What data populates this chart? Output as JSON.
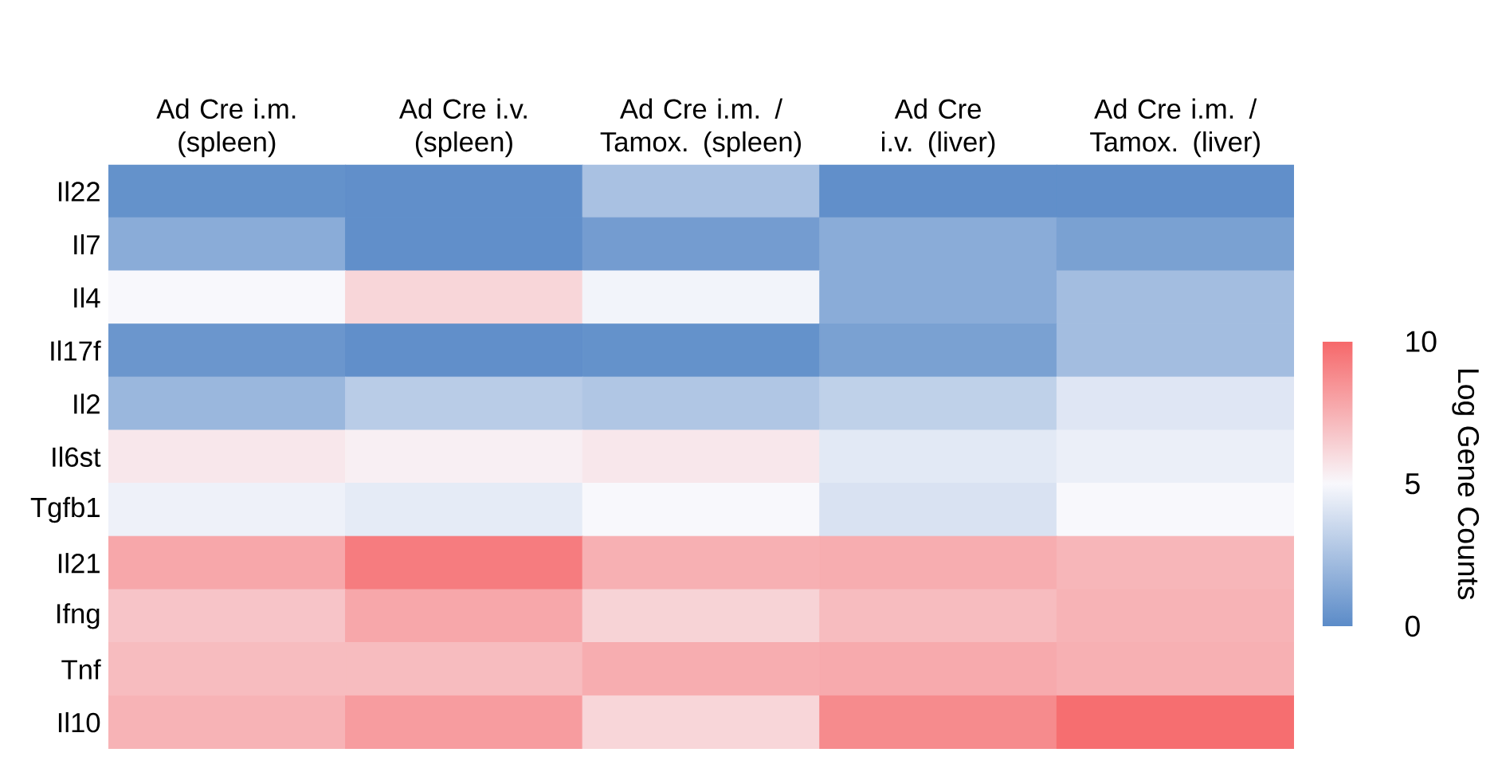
{
  "chart_data": {
    "type": "heatmap",
    "categories": [
      "Ad Cre i.m. (spleen)",
      "Ad Cre i.v. (spleen)",
      "Ad Cre i.m. / Tamox. (spleen)",
      "Ad Cre i.v. (liver)",
      "Ad Cre i.m. / Tamox. (liver)"
    ],
    "y_categories": [
      "Il22",
      "Il7",
      "Il4",
      "Il17f",
      "Il2",
      "Il6st",
      "Tgfb1",
      "Il21",
      "Ifng",
      "Tnf",
      "Il10"
    ],
    "cells": [
      [
        0.3,
        0.2,
        2.5,
        0.2,
        0.2
      ],
      [
        1.5,
        0.2,
        0.8,
        1.5,
        1.0
      ],
      [
        5.0,
        6.2,
        4.8,
        1.5,
        2.3
      ],
      [
        0.5,
        0.2,
        0.3,
        1.0,
        2.3
      ],
      [
        2.0,
        3.0,
        2.7,
        3.2,
        4.2
      ],
      [
        5.6,
        5.3,
        5.6,
        4.3,
        4.6
      ],
      [
        4.7,
        4.4,
        5.0,
        4.0,
        5.0
      ],
      [
        7.8,
        9.3,
        7.5,
        7.6,
        7.3
      ],
      [
        6.8,
        7.8,
        6.3,
        7.1,
        7.4
      ],
      [
        7.1,
        7.1,
        7.6,
        7.7,
        7.5
      ],
      [
        7.4,
        8.2,
        6.2,
        8.8,
        9.8
      ]
    ],
    "clabel": "Log Gene Counts",
    "clim": [
      0,
      10
    ],
    "cticks": [
      0,
      5,
      10
    ]
  }
}
